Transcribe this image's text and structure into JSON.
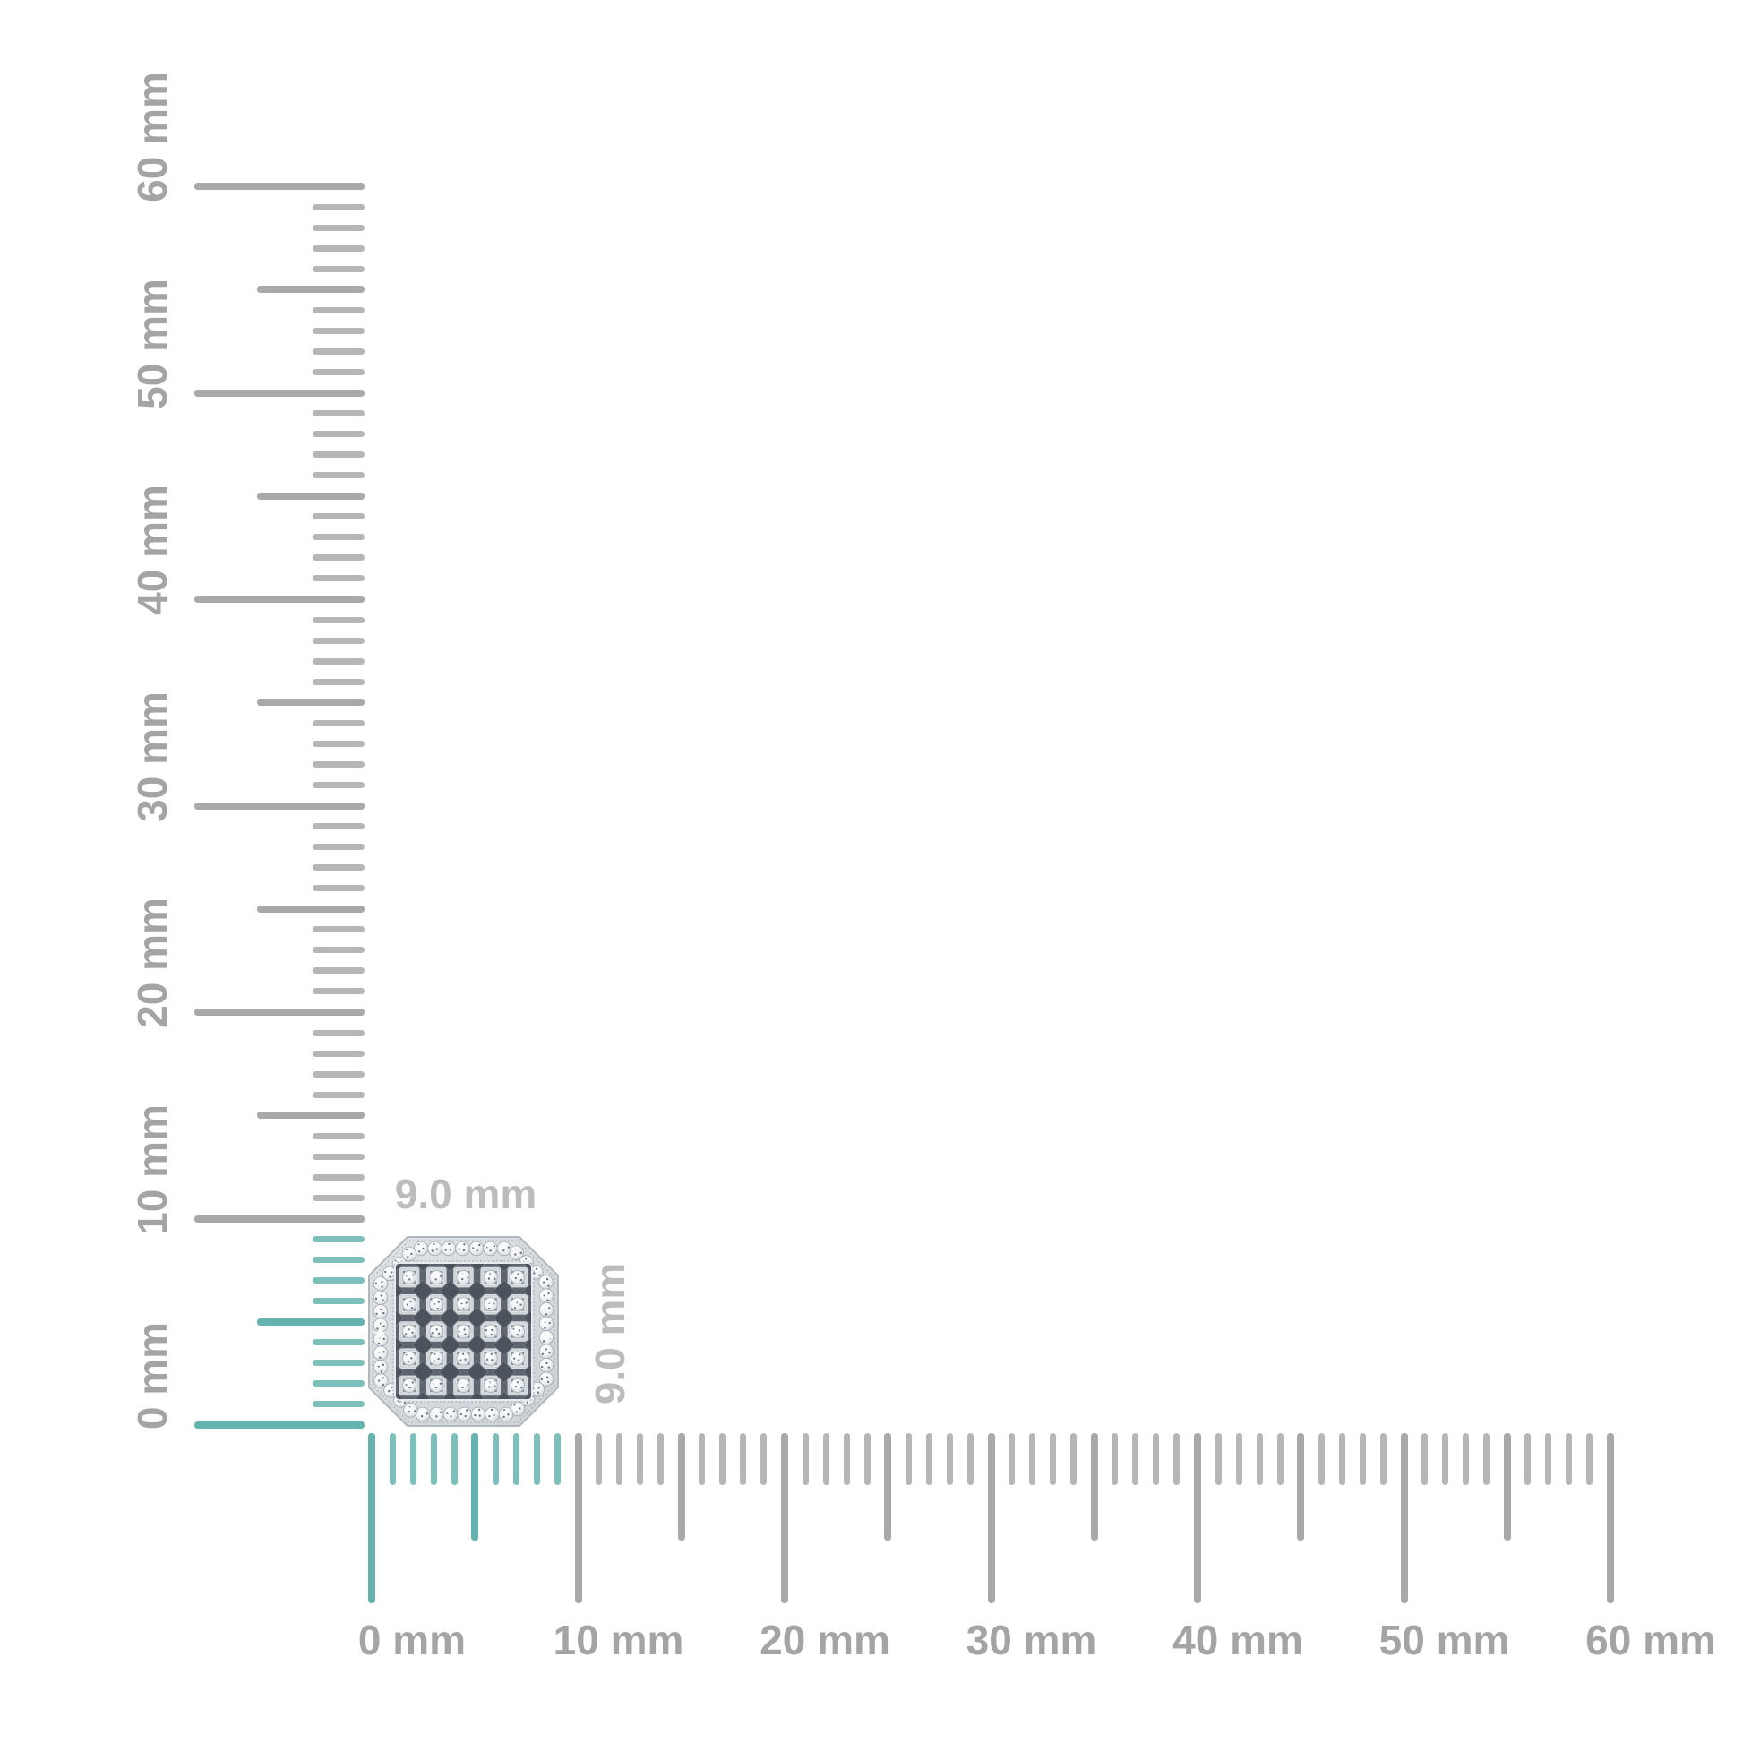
{
  "diagram": {
    "unit": "mm",
    "rulers": {
      "vertical": {
        "min_mm": 0,
        "max_mm": 60,
        "minor_step_mm": 1,
        "mid_step_mm": 5,
        "major_step_mm": 10,
        "highlight_to_mm": 9,
        "labels": [
          "0 mm",
          "10 mm",
          "20 mm",
          "30 mm",
          "40 mm",
          "50 mm",
          "60 mm"
        ]
      },
      "horizontal": {
        "min_mm": 0,
        "max_mm": 60,
        "minor_step_mm": 1,
        "mid_step_mm": 5,
        "major_step_mm": 10,
        "highlight_to_mm": 9,
        "labels": [
          "0 mm",
          "10 mm",
          "20 mm",
          "30 mm",
          "40 mm",
          "50 mm",
          "60 mm"
        ]
      }
    },
    "dimensions": {
      "width_label": "9.0 mm",
      "height_label": "9.0 mm"
    },
    "product": {
      "grid_rows": 5,
      "grid_cols": 5,
      "halo_stone_count": 42
    },
    "colors": {
      "tick_gray": "#a9a9a9",
      "tick_gray_minor": "#b6b6b6",
      "tick_teal": "#64b3ae",
      "tick_teal_minor": "#7dc0bb",
      "ruler_label": "#a4a4a4",
      "dimension_label": "#bcbcbc",
      "metal_band": "#d9dcdf",
      "metal_band_edge": "#b2b7bc",
      "metal_frame": "#ced3d8",
      "frame_highlight": "#e8ebee",
      "milgrain": "#959ca4",
      "cell_metal": "#cdd2d7",
      "cell_highlight": "#e9eced",
      "channel_dark": "#5e646e",
      "channel_darker": "#4d535d",
      "stone_edge": "#9aa1a8",
      "stone_speck": "#3e454f",
      "background": "#ffffff"
    }
  }
}
